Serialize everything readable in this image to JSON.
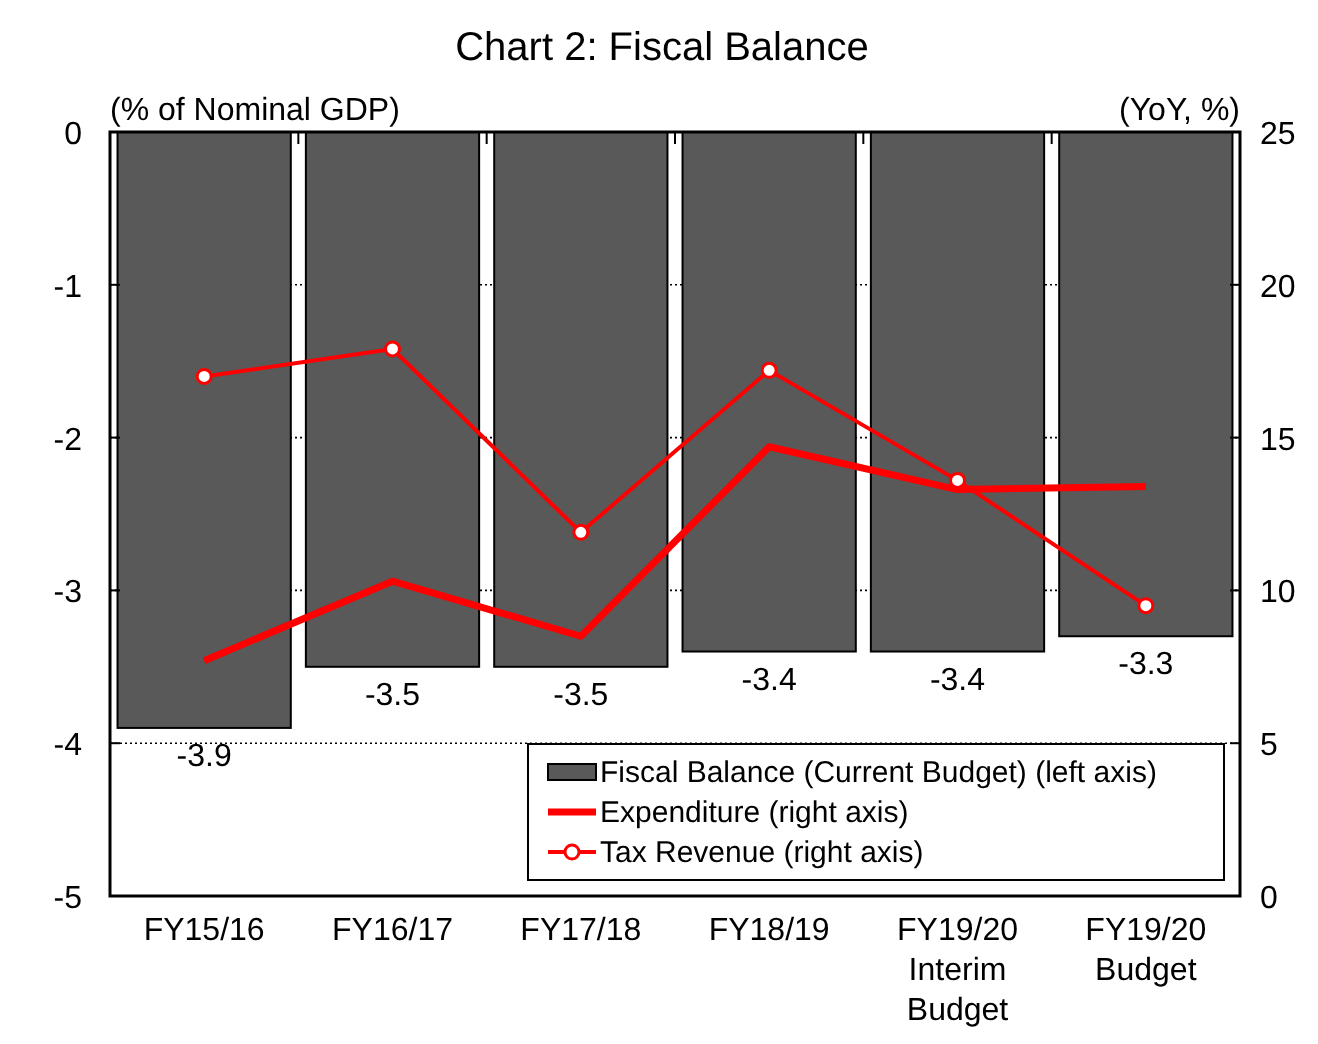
{
  "chart_data": {
    "type": "bar",
    "title": "Chart 2: Fiscal Balance",
    "ylabel": "(% of Nominal GDP)",
    "y2label": "(YoY, %)",
    "categories": [
      "FY15/16",
      "FY16/17",
      "FY17/18",
      "FY18/19",
      "FY19/20\nInterim\nBudget",
      "FY19/20\nBudget"
    ],
    "series": [
      {
        "name": "Fiscal Balance (Current Budget) (left axis)",
        "color": "#595959",
        "values": [
          -3.9,
          -3.5,
          -3.5,
          -3.4,
          -3.4,
          -3.3
        ],
        "data_labels": true
      },
      {
        "name": "Expenditure (right axis)",
        "type": "line",
        "axis": "y2",
        "color": "#ff0000",
        "marker": "none",
        "values": [
          7.7,
          10.3,
          8.5,
          14.7,
          13.3,
          13.4
        ]
      },
      {
        "name": "Tax Revenue (right axis)",
        "type": "line",
        "axis": "y2",
        "color": "#ff0000",
        "marker": "circle",
        "values": [
          17.0,
          17.9,
          11.9,
          17.2,
          13.6,
          9.5
        ]
      }
    ],
    "ylim": [
      -5,
      0
    ],
    "yticks": [
      0,
      -1,
      -2,
      -3,
      -4,
      -5
    ],
    "y2lim": [
      0,
      25
    ],
    "y2ticks": [
      25,
      20,
      15,
      10,
      5,
      0
    ],
    "grid": "y",
    "legend": "bottom right"
  }
}
